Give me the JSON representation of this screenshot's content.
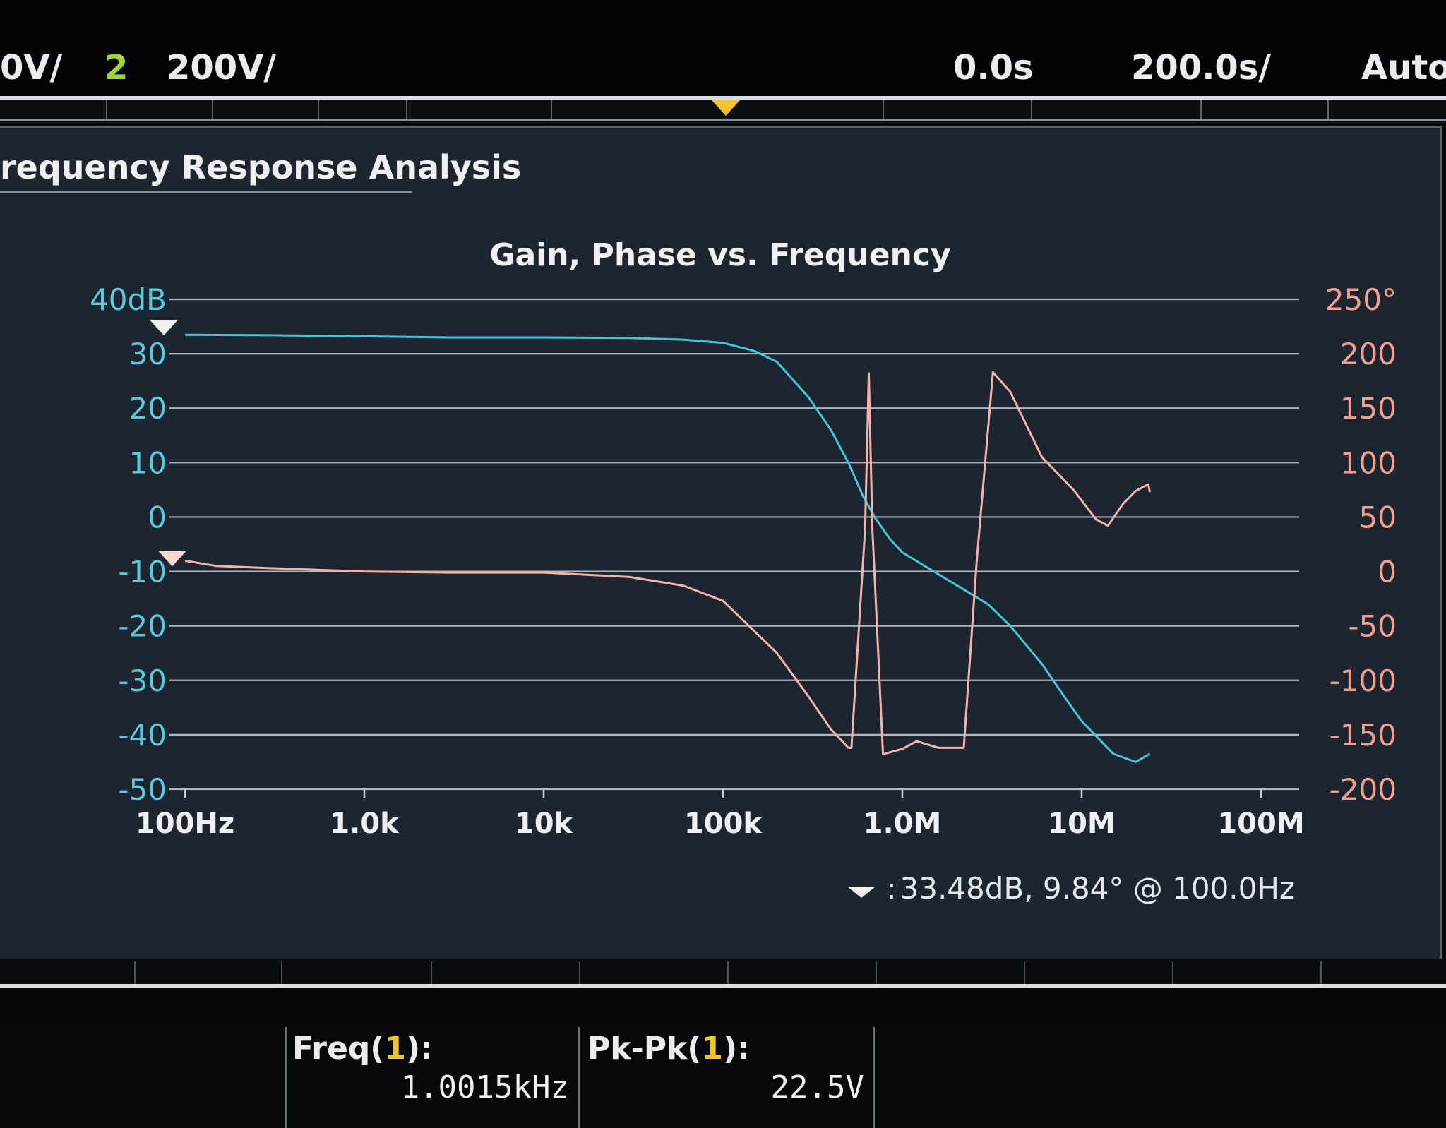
{
  "status_bar": {
    "ch1_scale": "0V/",
    "ch2_num": "2",
    "ch2_scale": "200V/",
    "time_delay": "0.0s",
    "time_scale": "200.0s/",
    "trigger_mode": "Auto"
  },
  "panel": {
    "title": "requency Response Analysis"
  },
  "marker_readout": {
    "separator": ":",
    "text": "33.48dB, 9.84° @ 100.0Hz"
  },
  "measurements": [
    {
      "label_prefix": "Freq(",
      "label_num": "1",
      "label_suffix": "):",
      "value": "1.0015kHz"
    },
    {
      "label_prefix": "Pk-Pk(",
      "label_num": "1",
      "label_suffix": "):",
      "value": "22.5V"
    }
  ],
  "colors": {
    "gain": "#45c6d8",
    "phase": "#f2b4a8",
    "grid": "#c9ced6",
    "left_axis": "#5ec8dc",
    "right_axis": "#f4a090"
  },
  "chart_data": {
    "type": "line",
    "title": "Gain, Phase vs. Frequency",
    "x_scale": "log",
    "xlim": [
      100,
      100000000
    ],
    "x_ticks": [
      {
        "value": 100,
        "label": "100Hz"
      },
      {
        "value": 1000,
        "label": "1.0k"
      },
      {
        "value": 10000,
        "label": "10k"
      },
      {
        "value": 100000,
        "label": "100k"
      },
      {
        "value": 1000000,
        "label": "1.0M"
      },
      {
        "value": 10000000,
        "label": "10M"
      },
      {
        "value": 100000000,
        "label": "100M"
      }
    ],
    "y_left": {
      "lim": [
        -50,
        40
      ],
      "ticks": [
        {
          "value": 40,
          "label": "40dB"
        },
        {
          "value": 30,
          "label": "30"
        },
        {
          "value": 20,
          "label": "20"
        },
        {
          "value": 10,
          "label": "10"
        },
        {
          "value": 0,
          "label": "0"
        },
        {
          "value": -10,
          "label": "-10"
        },
        {
          "value": -20,
          "label": "-20"
        },
        {
          "value": -30,
          "label": "-30"
        },
        {
          "value": -40,
          "label": "-40"
        },
        {
          "value": -50,
          "label": "-50"
        }
      ]
    },
    "y_right": {
      "lim": [
        -200,
        250
      ],
      "ticks": [
        {
          "value": 250,
          "label": "250°"
        },
        {
          "value": 200,
          "label": "200"
        },
        {
          "value": 150,
          "label": "150"
        },
        {
          "value": 100,
          "label": "100"
        },
        {
          "value": 50,
          "label": "50"
        },
        {
          "value": 0,
          "label": "0"
        },
        {
          "value": -50,
          "label": "-50"
        },
        {
          "value": -100,
          "label": "-100"
        },
        {
          "value": -150,
          "label": "-150"
        },
        {
          "value": -200,
          "label": "-200"
        }
      ]
    },
    "grid": true,
    "series": [
      {
        "axis": "left",
        "points": [
          [
            100,
            33.48
          ],
          [
            300,
            33.4
          ],
          [
            1000,
            33.2
          ],
          [
            3000,
            33.0
          ],
          [
            10000,
            33.0
          ],
          [
            30000,
            32.9
          ],
          [
            60000,
            32.6
          ],
          [
            100000,
            32.0
          ],
          [
            150000,
            30.5
          ],
          [
            200000,
            28.5
          ],
          [
            300000,
            22.0
          ],
          [
            400000,
            16.0
          ],
          [
            500000,
            10.0
          ],
          [
            600000,
            4.0
          ],
          [
            700000,
            0.0
          ],
          [
            850000,
            -4.0
          ],
          [
            1000000,
            -6.5
          ],
          [
            1500000,
            -10.0
          ],
          [
            2000000,
            -12.5
          ],
          [
            3000000,
            -16.0
          ],
          [
            4000000,
            -20.0
          ],
          [
            6000000,
            -27.0
          ],
          [
            8000000,
            -33.0
          ],
          [
            10000000,
            -37.5
          ],
          [
            15000000,
            -43.5
          ],
          [
            20000000,
            -45.0
          ],
          [
            24000000,
            -43.5
          ]
        ]
      },
      {
        "axis": "right",
        "points": [
          [
            100,
            9.84
          ],
          [
            150,
            5.0
          ],
          [
            300,
            3.0
          ],
          [
            1000,
            0.0
          ],
          [
            3000,
            -1.0
          ],
          [
            10000,
            -1.0
          ],
          [
            30000,
            -5.0
          ],
          [
            60000,
            -13.0
          ],
          [
            100000,
            -27.0
          ],
          [
            200000,
            -75.0
          ],
          [
            300000,
            -115.0
          ],
          [
            400000,
            -145.0
          ],
          [
            500000,
            -162.0
          ],
          [
            520000,
            -162.0
          ],
          [
            620000,
            40.0
          ],
          [
            650000,
            182.0
          ],
          [
            680000,
            40.0
          ],
          [
            780000,
            -168.0
          ],
          [
            1000000,
            -163.0
          ],
          [
            1200000,
            -156.0
          ],
          [
            1600000,
            -162.0
          ],
          [
            2200000,
            -162.0
          ],
          [
            2600000,
            10.0
          ],
          [
            3200000,
            183.0
          ],
          [
            4000000,
            165.0
          ],
          [
            6000000,
            105.0
          ],
          [
            9000000,
            75.0
          ],
          [
            12000000,
            48.0
          ],
          [
            14000000,
            42.0
          ],
          [
            17000000,
            62.0
          ],
          [
            20000000,
            74.0
          ],
          [
            23500000,
            80.0
          ],
          [
            24000000,
            73.0
          ]
        ]
      }
    ]
  }
}
